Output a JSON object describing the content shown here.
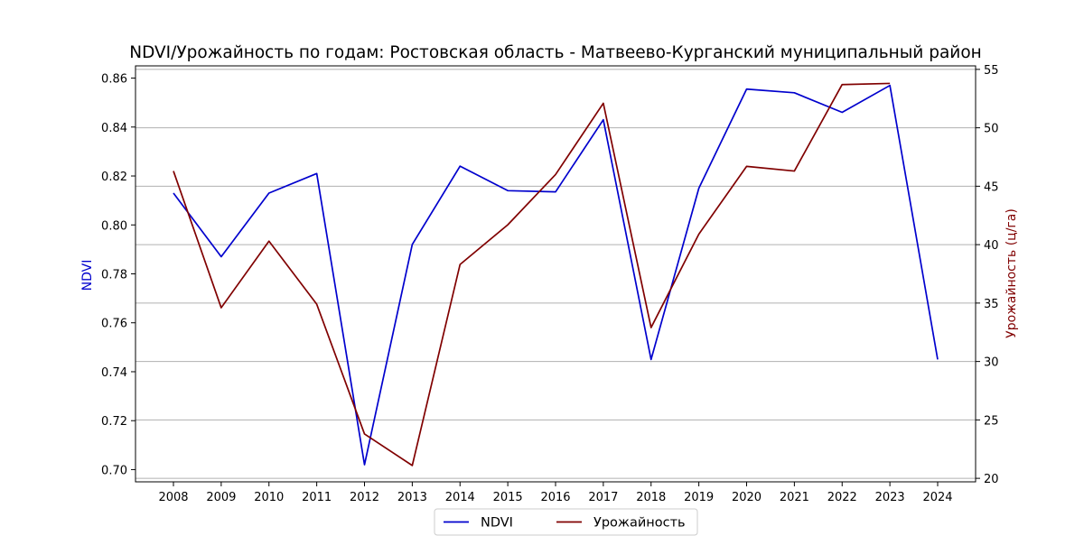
{
  "chart_data": {
    "type": "line",
    "title": "NDVI/Урожайность по годам: Ростовская область - Матвеево-Курганский муниципальный район",
    "xlabel": "",
    "ylabel": "NDVI",
    "ylabel_right": "Урожайность (ц/га)",
    "x": [
      "2008",
      "2009",
      "2010",
      "2011",
      "2012",
      "2013",
      "2014",
      "2015",
      "2016",
      "2017",
      "2018",
      "2019",
      "2020",
      "2021",
      "2022",
      "2023",
      "2024"
    ],
    "ylim_left": [
      0.695,
      0.865
    ],
    "ylim_right": [
      19.7,
      55.3
    ],
    "yticks_left": [
      "0.70",
      "0.72",
      "0.74",
      "0.76",
      "0.78",
      "0.80",
      "0.82",
      "0.84",
      "0.86"
    ],
    "yticks_right": [
      "20",
      "25",
      "30",
      "35",
      "40",
      "45",
      "50",
      "55"
    ],
    "grid": "horizontal lines at right-axis ticks",
    "legend_position": "bottom-center",
    "series": [
      {
        "name": "NDVI",
        "axis": "left",
        "color": "#0000cd",
        "values": [
          0.813,
          0.787,
          0.813,
          0.821,
          0.702,
          0.792,
          0.824,
          0.814,
          0.8135,
          0.843,
          0.745,
          0.815,
          0.8555,
          0.854,
          0.846,
          0.857,
          0.745
        ]
      },
      {
        "name": "Урожайность",
        "axis": "right",
        "color": "#800000",
        "values": [
          46.3,
          34.6,
          40.3,
          34.9,
          23.8,
          21.1,
          38.3,
          41.7,
          46.0,
          52.1,
          32.9,
          40.9,
          46.7,
          46.3,
          53.7,
          53.8,
          null
        ]
      }
    ]
  }
}
